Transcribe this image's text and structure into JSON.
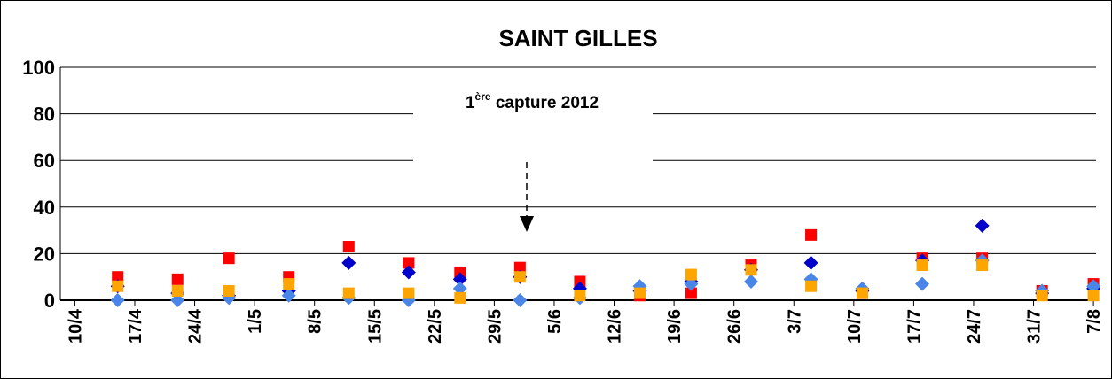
{
  "chart_data": {
    "type": "scatter",
    "title": "SAINT GILLES",
    "annotation": {
      "parts": [
        "1",
        "ère",
        " capture 2012"
      ]
    },
    "xlim": [
      -1.7,
      119.3
    ],
    "xticks": [
      {
        "value": 0,
        "label": "10/4"
      },
      {
        "value": 7,
        "label": "17/4"
      },
      {
        "value": 14,
        "label": "24/4"
      },
      {
        "value": 21,
        "label": "1/5"
      },
      {
        "value": 28,
        "label": "8/5"
      },
      {
        "value": 35,
        "label": "15/5"
      },
      {
        "value": 42,
        "label": "22/5"
      },
      {
        "value": 49,
        "label": "29/5"
      },
      {
        "value": 56,
        "label": "5/6"
      },
      {
        "value": 63,
        "label": "12/6"
      },
      {
        "value": 70,
        "label": "19/6"
      },
      {
        "value": 77,
        "label": "26/6"
      },
      {
        "value": 84,
        "label": "3/7"
      },
      {
        "value": 91,
        "label": "10/7"
      },
      {
        "value": 98,
        "label": "17/7"
      },
      {
        "value": 105,
        "label": "24/7"
      },
      {
        "value": 112,
        "label": "31/7"
      },
      {
        "value": 119,
        "label": "7/8"
      }
    ],
    "ylim": [
      0,
      100
    ],
    "yticks": [
      0,
      20,
      40,
      60,
      80,
      100
    ],
    "grid": true,
    "x": [
      5,
      12,
      18,
      25,
      32,
      39,
      45,
      52,
      59,
      66,
      72,
      79,
      86,
      92,
      99,
      106,
      113,
      119
    ],
    "series": [
      {
        "color": "#ff0000",
        "marker": "square",
        "values": [
          10,
          9,
          18,
          10,
          23,
          16,
          12,
          14,
          8,
          2,
          3,
          15,
          28,
          3,
          18,
          18,
          4,
          7
        ]
      },
      {
        "color": "#0000cc",
        "marker": "diamond",
        "values": [
          6,
          3,
          2,
          4,
          16,
          12,
          9,
          10,
          5,
          4,
          8,
          13,
          16,
          4,
          17,
          32,
          3,
          5
        ]
      },
      {
        "color": "#4a86e8",
        "marker": "diamond",
        "values": [
          0,
          0,
          1,
          2,
          1,
          0,
          5,
          0,
          1,
          6,
          7,
          8,
          9,
          5,
          7,
          17,
          4,
          6
        ]
      },
      {
        "color": "#ffa500",
        "marker": "square",
        "values": [
          6,
          4,
          4,
          7,
          3,
          3,
          1,
          10,
          2,
          3,
          11,
          13,
          6,
          3,
          15,
          15,
          2,
          2
        ]
      }
    ]
  }
}
